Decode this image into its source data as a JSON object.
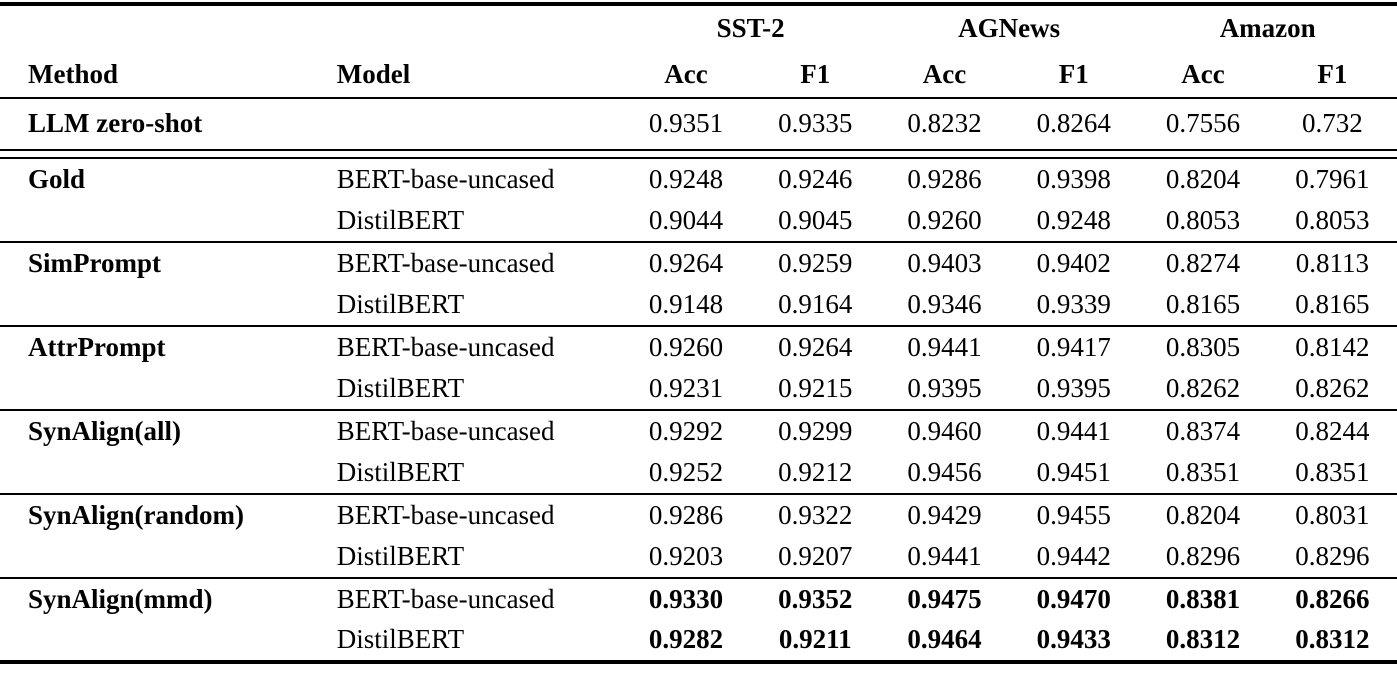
{
  "colors": {
    "text": "#000000",
    "background": "#ffffff",
    "rule": "#000000"
  },
  "table": {
    "col_groups": [
      {
        "label": "SST-2"
      },
      {
        "label": "AGNews"
      },
      {
        "label": "Amazon"
      }
    ],
    "headers": {
      "method": "Method",
      "model": "Model"
    },
    "sub_headers": [
      "Acc",
      "F1",
      "Acc",
      "F1",
      "Acc",
      "F1"
    ],
    "rows": [
      {
        "method": "LLM zero-shot",
        "model": "",
        "values": [
          "0.9351",
          "0.9335",
          "0.8232",
          "0.8264",
          "0.7556",
          "0.732"
        ],
        "emphasis": false
      },
      {
        "method": "Gold",
        "model": "BERT-base-uncased",
        "values": [
          "0.9248",
          "0.9246",
          "0.9286",
          "0.9398",
          "0.8204",
          "0.7961"
        ],
        "emphasis": false
      },
      {
        "method": "",
        "model": "DistilBERT",
        "values": [
          "0.9044",
          "0.9045",
          "0.9260",
          "0.9248",
          "0.8053",
          "0.8053"
        ],
        "emphasis": false
      },
      {
        "method": "SimPrompt",
        "model": "BERT-base-uncased",
        "values": [
          "0.9264",
          "0.9259",
          "0.9403",
          "0.9402",
          "0.8274",
          "0.8113"
        ],
        "emphasis": false
      },
      {
        "method": "",
        "model": "DistilBERT",
        "values": [
          "0.9148",
          "0.9164",
          "0.9346",
          "0.9339",
          "0.8165",
          "0.8165"
        ],
        "emphasis": false
      },
      {
        "method": "AttrPrompt",
        "model": "BERT-base-uncased",
        "values": [
          "0.9260",
          "0.9264",
          "0.9441",
          "0.9417",
          "0.8305",
          "0.8142"
        ],
        "emphasis": false
      },
      {
        "method": "",
        "model": "DistilBERT",
        "values": [
          "0.9231",
          "0.9215",
          "0.9395",
          "0.9395",
          "0.8262",
          "0.8262"
        ],
        "emphasis": false
      },
      {
        "method": "SynAlign(all)",
        "model": "BERT-base-uncased",
        "values": [
          "0.9292",
          "0.9299",
          "0.9460",
          "0.9441",
          "0.8374",
          "0.8244"
        ],
        "emphasis": false
      },
      {
        "method": "",
        "model": "DistilBERT",
        "values": [
          "0.9252",
          "0.9212",
          "0.9456",
          "0.9451",
          "0.8351",
          "0.8351"
        ],
        "emphasis": false
      },
      {
        "method": "SynAlign(random)",
        "model": "BERT-base-uncased",
        "values": [
          "0.9286",
          "0.9322",
          "0.9429",
          "0.9455",
          "0.8204",
          "0.8031"
        ],
        "emphasis": false
      },
      {
        "method": "",
        "model": "DistilBERT",
        "values": [
          "0.9203",
          "0.9207",
          "0.9441",
          "0.9442",
          "0.8296",
          "0.8296"
        ],
        "emphasis": false
      },
      {
        "method": "SynAlign(mmd)",
        "model": "BERT-base-uncased",
        "values": [
          "0.9330",
          "0.9352",
          "0.9475",
          "0.9470",
          "0.8381",
          "0.8266"
        ],
        "emphasis": true
      },
      {
        "method": "",
        "model": "DistilBERT",
        "values": [
          "0.9282",
          "0.9211",
          "0.9464",
          "0.9433",
          "0.8312",
          "0.8312"
        ],
        "emphasis": true
      }
    ]
  }
}
